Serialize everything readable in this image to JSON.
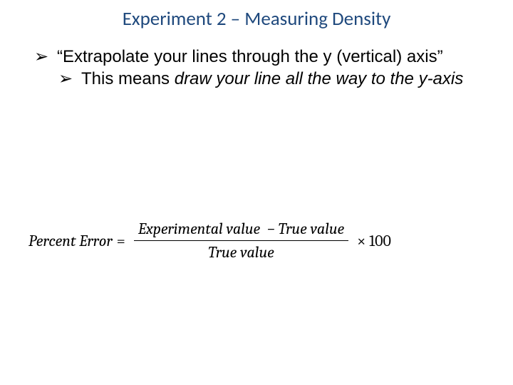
{
  "title": {
    "text": "Experiment 2 – Measuring Density",
    "color": "#1f497d"
  },
  "bullets": {
    "marker": "➢",
    "level1_text": "“Extrapolate your lines through the y (vertical) axis”",
    "level2_prefix": "This means ",
    "level2_italic": "draw your line all the way to the y-axis"
  },
  "formula": {
    "lhs": "Percent Error",
    "numerator": "Experimental value  − True value",
    "denominator": "True value",
    "multiplier": "× 100"
  }
}
